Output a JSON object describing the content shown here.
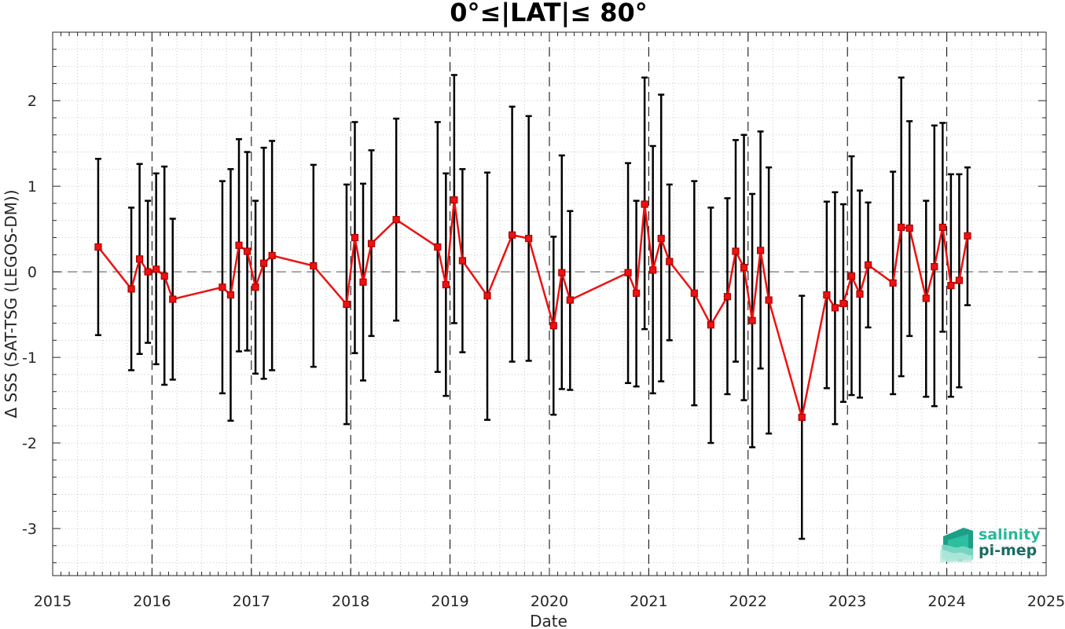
{
  "chart_data": {
    "type": "line",
    "title": "0°≤|LAT|≤ 80°",
    "xlabel": "Date",
    "ylabel": "Δ SSS (SAT-TSG (LEGOS-DM))",
    "xlim": [
      "2015-01-01",
      "2025-01-01"
    ],
    "ylim": [
      -3.55,
      2.8
    ],
    "xticks": [
      "2015",
      "2016",
      "2017",
      "2018",
      "2019",
      "2020",
      "2021",
      "2022",
      "2023",
      "2024",
      "2025"
    ],
    "yticks": [
      -3,
      -2,
      -1,
      0,
      1,
      2
    ],
    "year_lines": [
      "2016",
      "2017",
      "2018",
      "2019",
      "2020",
      "2021",
      "2022",
      "2023",
      "2024"
    ],
    "zero_line": 0,
    "grid": "minor dotted",
    "series": [
      {
        "color": "#ee1111",
        "marker": "square",
        "errorbar_color": "#000000",
        "points": [
          {
            "x": "2015-06",
            "y": 0.29,
            "lo": -0.74,
            "hi": 1.32
          },
          {
            "x": "2015-10",
            "y": -0.2,
            "lo": -1.15,
            "hi": 0.75
          },
          {
            "x": "2015-11",
            "y": 0.15,
            "lo": -0.96,
            "hi": 1.26
          },
          {
            "x": "2015-12",
            "y": 0.0,
            "lo": -0.83,
            "hi": 0.83
          },
          {
            "x": "2016-01",
            "y": 0.03,
            "lo": -1.08,
            "hi": 1.15
          },
          {
            "x": "2016-02",
            "y": -0.05,
            "lo": -1.32,
            "hi": 1.23
          },
          {
            "x": "2016-03",
            "y": -0.32,
            "lo": -1.26,
            "hi": 0.62
          },
          {
            "x": "2016-09",
            "y": -0.18,
            "lo": -1.42,
            "hi": 1.06
          },
          {
            "x": "2016-10",
            "y": -0.27,
            "lo": -1.74,
            "hi": 1.2
          },
          {
            "x": "2016-11",
            "y": 0.31,
            "lo": -0.93,
            "hi": 1.55
          },
          {
            "x": "2016-12",
            "y": 0.24,
            "lo": -0.92,
            "hi": 1.4
          },
          {
            "x": "2017-01",
            "y": -0.18,
            "lo": -1.19,
            "hi": 0.83
          },
          {
            "x": "2017-02",
            "y": 0.1,
            "lo": -1.25,
            "hi": 1.45
          },
          {
            "x": "2017-03",
            "y": 0.19,
            "lo": -1.15,
            "hi": 1.53
          },
          {
            "x": "2017-08",
            "y": 0.07,
            "lo": -1.11,
            "hi": 1.25
          },
          {
            "x": "2017-12",
            "y": -0.38,
            "lo": -1.78,
            "hi": 1.02
          },
          {
            "x": "2018-01",
            "y": 0.4,
            "lo": -0.95,
            "hi": 1.75
          },
          {
            "x": "2018-02",
            "y": -0.12,
            "lo": -1.27,
            "hi": 1.03
          },
          {
            "x": "2018-03",
            "y": 0.33,
            "lo": -0.75,
            "hi": 1.42
          },
          {
            "x": "2018-06",
            "y": 0.61,
            "lo": -0.57,
            "hi": 1.79
          },
          {
            "x": "2018-11",
            "y": 0.29,
            "lo": -1.17,
            "hi": 1.75
          },
          {
            "x": "2018-12",
            "y": -0.15,
            "lo": -1.45,
            "hi": 1.15
          },
          {
            "x": "2019-01",
            "y": 0.84,
            "lo": -0.6,
            "hi": 2.3
          },
          {
            "x": "2019-02",
            "y": 0.13,
            "lo": -0.94,
            "hi": 1.2
          },
          {
            "x": "2019-05",
            "y": -0.28,
            "lo": -1.73,
            "hi": 1.16
          },
          {
            "x": "2019-08",
            "y": 0.43,
            "lo": -1.05,
            "hi": 1.93
          },
          {
            "x": "2019-10",
            "y": 0.39,
            "lo": -1.04,
            "hi": 1.82
          },
          {
            "x": "2020-01",
            "y": -0.63,
            "lo": -1.67,
            "hi": 0.41
          },
          {
            "x": "2020-02",
            "y": -0.01,
            "lo": -1.37,
            "hi": 1.36
          },
          {
            "x": "2020-03",
            "y": -0.33,
            "lo": -1.38,
            "hi": 0.71
          },
          {
            "x": "2020-10",
            "y": -0.01,
            "lo": -1.3,
            "hi": 1.27
          },
          {
            "x": "2020-11",
            "y": -0.25,
            "lo": -1.34,
            "hi": 0.83
          },
          {
            "x": "2020-12",
            "y": 0.79,
            "lo": -0.67,
            "hi": 2.27
          },
          {
            "x": "2021-01",
            "y": 0.02,
            "lo": -1.42,
            "hi": 1.47
          },
          {
            "x": "2021-02",
            "y": 0.39,
            "lo": -1.28,
            "hi": 2.07
          },
          {
            "x": "2021-03",
            "y": 0.12,
            "lo": -0.8,
            "hi": 1.02
          },
          {
            "x": "2021-06",
            "y": -0.25,
            "lo": -1.56,
            "hi": 1.06
          },
          {
            "x": "2021-08",
            "y": -0.62,
            "lo": -2.0,
            "hi": 0.75
          },
          {
            "x": "2021-10",
            "y": -0.29,
            "lo": -1.43,
            "hi": 0.86
          },
          {
            "x": "2021-11",
            "y": 0.24,
            "lo": -1.05,
            "hi": 1.54
          },
          {
            "x": "2021-12",
            "y": 0.05,
            "lo": -1.5,
            "hi": 1.6
          },
          {
            "x": "2022-01",
            "y": -0.57,
            "lo": -2.05,
            "hi": 0.91
          },
          {
            "x": "2022-02",
            "y": 0.25,
            "lo": -1.13,
            "hi": 1.64
          },
          {
            "x": "2022-03",
            "y": -0.33,
            "lo": -1.89,
            "hi": 1.22
          },
          {
            "x": "2022-07",
            "y": -1.7,
            "lo": -3.12,
            "hi": -0.28
          },
          {
            "x": "2022-10",
            "y": -0.27,
            "lo": -1.36,
            "hi": 0.82
          },
          {
            "x": "2022-11",
            "y": -0.42,
            "lo": -1.78,
            "hi": 0.93
          },
          {
            "x": "2022-12",
            "y": -0.37,
            "lo": -1.52,
            "hi": 0.79
          },
          {
            "x": "2023-01",
            "y": -0.05,
            "lo": -1.44,
            "hi": 1.35
          },
          {
            "x": "2023-02",
            "y": -0.26,
            "lo": -1.47,
            "hi": 0.95
          },
          {
            "x": "2023-03",
            "y": 0.08,
            "lo": -0.65,
            "hi": 0.81
          },
          {
            "x": "2023-06",
            "y": -0.13,
            "lo": -1.43,
            "hi": 1.17
          },
          {
            "x": "2023-07",
            "y": 0.52,
            "lo": -1.22,
            "hi": 2.27
          },
          {
            "x": "2023-08",
            "y": 0.51,
            "lo": -0.75,
            "hi": 1.76
          },
          {
            "x": "2023-10",
            "y": -0.31,
            "lo": -1.46,
            "hi": 0.83
          },
          {
            "x": "2023-11",
            "y": 0.06,
            "lo": -1.57,
            "hi": 1.71
          },
          {
            "x": "2023-12",
            "y": 0.52,
            "lo": -0.7,
            "hi": 1.74
          },
          {
            "x": "2024-01",
            "y": -0.16,
            "lo": -1.46,
            "hi": 1.14
          },
          {
            "x": "2024-02",
            "y": -0.1,
            "lo": -1.35,
            "hi": 1.14
          },
          {
            "x": "2024-03",
            "y": 0.42,
            "lo": -0.39,
            "hi": 1.22
          }
        ]
      }
    ]
  },
  "logo": {
    "line1": "salinity",
    "line2": "pi-mep",
    "color1": "#2ab79a",
    "color2": "#1b6b63"
  }
}
